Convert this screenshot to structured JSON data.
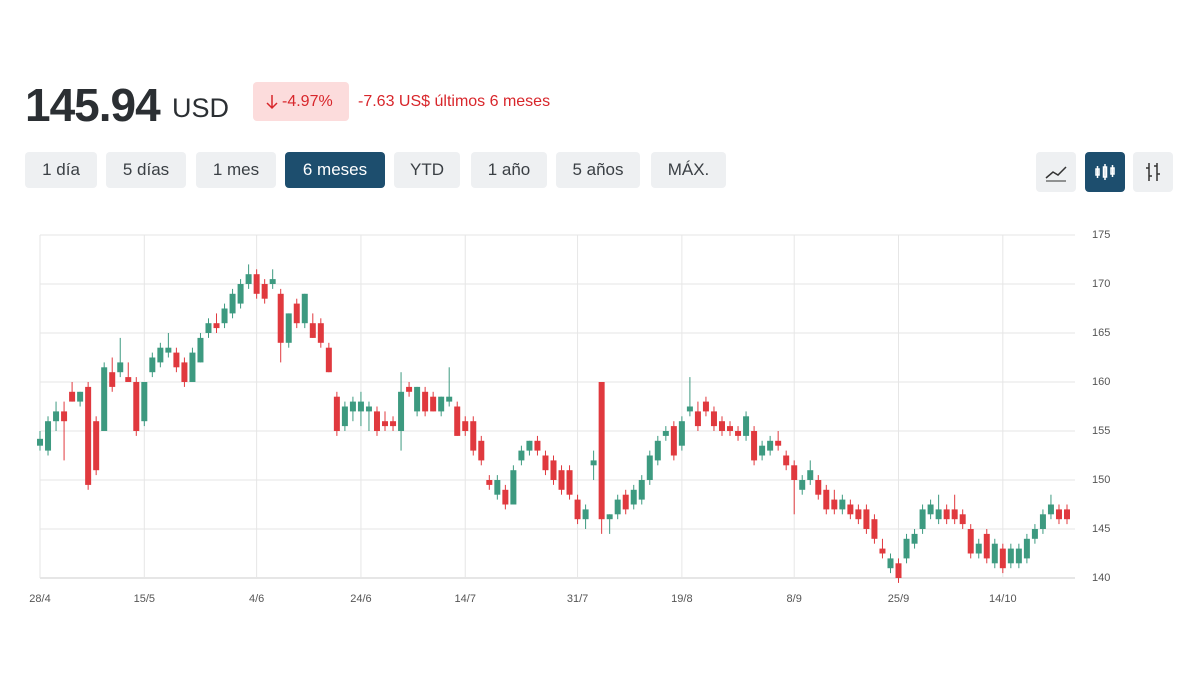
{
  "header": {
    "price": "145.94",
    "currency": "USD",
    "change_pct": "-4.97%",
    "change_abs": "-7.63 US$ últimos 6 meses"
  },
  "ranges": {
    "buttons": [
      "1 día",
      "5 días",
      "1 mes",
      "6 meses",
      "YTD",
      "1 año",
      "5 años",
      "MÁX."
    ],
    "selected": 3
  },
  "chart_data": {
    "type": "candlestick",
    "up_color": "#3d9a80",
    "down_color": "#e0393e",
    "grid": true,
    "categories": [
      "28/4",
      null,
      null,
      null,
      null,
      null,
      null,
      null,
      null,
      null,
      null,
      null,
      null,
      "15/5",
      null,
      null,
      null,
      null,
      null,
      null,
      null,
      null,
      null,
      null,
      null,
      null,
      null,
      "4/6",
      null,
      null,
      null,
      null,
      null,
      null,
      null,
      null,
      null,
      null,
      null,
      null,
      "24/6",
      null,
      null,
      null,
      null,
      null,
      null,
      null,
      null,
      null,
      null,
      null,
      null,
      "14/7",
      null,
      null,
      null,
      null,
      null,
      null,
      null,
      null,
      null,
      null,
      null,
      null,
      null,
      "31/7",
      null,
      null,
      null,
      null,
      null,
      null,
      null,
      null,
      null,
      null,
      null,
      null,
      "19/8",
      null,
      null,
      null,
      null,
      null,
      null,
      null,
      null,
      null,
      null,
      null,
      null,
      null,
      "8/9",
      null,
      null,
      null,
      null,
      null,
      null,
      null,
      null,
      null,
      null,
      null,
      null,
      "25/9",
      null,
      null,
      null,
      null,
      null,
      null,
      null,
      null,
      null,
      null,
      null,
      null,
      "14/10",
      null,
      null,
      null,
      null,
      null,
      null,
      null,
      null
    ],
    "open": [
      153.5,
      153,
      156,
      157,
      159,
      158,
      159.5,
      156,
      155,
      161,
      161,
      160.5,
      160,
      156,
      161,
      162,
      163,
      163,
      162,
      160,
      162,
      165,
      166,
      166,
      167,
      168,
      170,
      171,
      170,
      170,
      169,
      164,
      168,
      166,
      166,
      166,
      163.5,
      158.5,
      155.5,
      157,
      157,
      157,
      157,
      156,
      156,
      155,
      159.5,
      157,
      159,
      158.5,
      157,
      158,
      157.5,
      156,
      156,
      154,
      150,
      148.5,
      149,
      147.5,
      152,
      153,
      154,
      152.5,
      152,
      151,
      151,
      148,
      146,
      151.5,
      160,
      146,
      146.5,
      148.5,
      147.5,
      148,
      150,
      152,
      154.5,
      155.5,
      153.5,
      157,
      157,
      158,
      157,
      156,
      155.5,
      155,
      154.5,
      155,
      152.5,
      153,
      154,
      152.5,
      151.5,
      149,
      150,
      150,
      149,
      148,
      147,
      147.5,
      147,
      147,
      146,
      143,
      141,
      141.5,
      142,
      143.5,
      145,
      146.5,
      146,
      147,
      147,
      146.5,
      145,
      142.5,
      144.5,
      141.5,
      143,
      141.5,
      141.5,
      142,
      144,
      145,
      146.5,
      147,
      147
    ],
    "high": [
      155,
      156.5,
      158,
      158,
      160,
      159,
      160,
      156.5,
      162,
      162.5,
      164.5,
      162,
      160.5,
      160,
      163,
      164,
      165,
      163.5,
      162.5,
      163.5,
      165,
      166.5,
      167,
      168,
      169.5,
      170.5,
      172,
      171.5,
      170.5,
      171.5,
      169.5,
      167,
      168.5,
      169,
      167,
      166.5,
      164,
      159,
      158,
      158.5,
      159,
      158,
      157.5,
      157,
      156.5,
      161,
      160,
      159.5,
      159.5,
      159,
      158.5,
      161.5,
      158,
      156.5,
      156.5,
      154.5,
      150.5,
      150.5,
      149.5,
      151.5,
      153.5,
      154,
      154.5,
      153,
      152.5,
      151.5,
      151.5,
      148.5,
      147.5,
      153,
      160,
      146.5,
      148.5,
      149,
      149.5,
      150.5,
      153,
      154.5,
      155.5,
      156,
      156.5,
      160.5,
      158,
      158.5,
      157.5,
      156.5,
      156,
      155.5,
      157,
      155.5,
      154,
      154.5,
      155,
      153,
      152,
      150.5,
      152,
      150.5,
      149.5,
      149,
      148.5,
      148,
      147.5,
      147.5,
      146.5,
      144,
      142.5,
      142,
      144.5,
      145,
      147.5,
      148,
      148.5,
      147.5,
      148.5,
      147,
      145.5,
      144,
      145,
      144,
      143.5,
      143.5,
      143.5,
      144.5,
      145.5,
      147,
      148.5,
      147.5,
      147.5
    ],
    "low": [
      153,
      152.5,
      155,
      152,
      158,
      157.5,
      149,
      150.5,
      155,
      159,
      160.5,
      160,
      154.5,
      155.5,
      160.5,
      161.5,
      162.5,
      161,
      159.5,
      160,
      162,
      164.5,
      165,
      165.5,
      166.5,
      167.5,
      169.5,
      168.5,
      168,
      169.5,
      162,
      163.5,
      165.5,
      165.5,
      164.5,
      163.5,
      161,
      154.5,
      155,
      156,
      155.5,
      155,
      154.5,
      155,
      155,
      153,
      158.5,
      156.5,
      156.5,
      157,
      156.5,
      157.5,
      154.5,
      154.5,
      152.5,
      151.5,
      149,
      148,
      147,
      147.5,
      151.5,
      152.5,
      152.5,
      150.5,
      149.5,
      148.5,
      148,
      145.5,
      145,
      150,
      144.5,
      144.5,
      146,
      146.5,
      147,
      147.5,
      149.5,
      151.5,
      154,
      152,
      153,
      156.5,
      155,
      156.5,
      155,
      154.5,
      154.5,
      154,
      154,
      151.5,
      152,
      152.5,
      153,
      151,
      146.5,
      148.5,
      149.5,
      148,
      146.5,
      146.5,
      146.5,
      146,
      145.5,
      144.5,
      143.5,
      142,
      140.5,
      139.5,
      141.5,
      143,
      144.5,
      146,
      145.5,
      145.5,
      145.5,
      145,
      142,
      142,
      141.5,
      141,
      140.5,
      141,
      141,
      141.5,
      143.5,
      144.5,
      146,
      145.5,
      145.5
    ],
    "close": [
      154.2,
      156,
      157,
      156,
      158,
      159,
      149.5,
      151,
      161.5,
      159.5,
      162,
      160,
      155,
      160,
      162.5,
      163.5,
      163.5,
      161.5,
      160,
      163,
      164.5,
      166,
      165.5,
      167.5,
      169,
      170,
      171,
      169,
      168.5,
      170.5,
      164,
      167,
      166,
      169,
      164.5,
      164,
      161,
      155,
      157.5,
      158,
      158,
      157.5,
      155,
      155.5,
      155.5,
      159,
      159,
      159.5,
      157,
      157,
      158.5,
      158.5,
      154.5,
      155,
      153,
      152,
      149.5,
      150,
      147.5,
      151,
      153,
      154,
      153,
      151,
      150,
      149,
      148.5,
      146,
      147,
      152,
      146,
      146.5,
      148,
      147,
      149,
      150,
      152.5,
      154,
      155,
      152.5,
      156,
      157.5,
      155.5,
      157,
      155.5,
      155,
      155,
      154.5,
      156.5,
      152,
      153.5,
      154,
      153.5,
      151.5,
      150,
      150,
      151,
      148.5,
      147,
      147,
      148,
      146.5,
      146,
      145,
      144,
      142.5,
      142,
      140,
      144,
      144.5,
      147,
      147.5,
      147,
      146,
      146,
      145.5,
      142.5,
      143.5,
      142,
      143.5,
      141,
      143,
      143,
      144,
      145,
      146.5,
      147.5,
      146,
      146
    ],
    "ylim": [
      140,
      175
    ],
    "yticks": [
      140,
      145,
      150,
      155,
      160,
      165,
      170,
      175
    ]
  }
}
